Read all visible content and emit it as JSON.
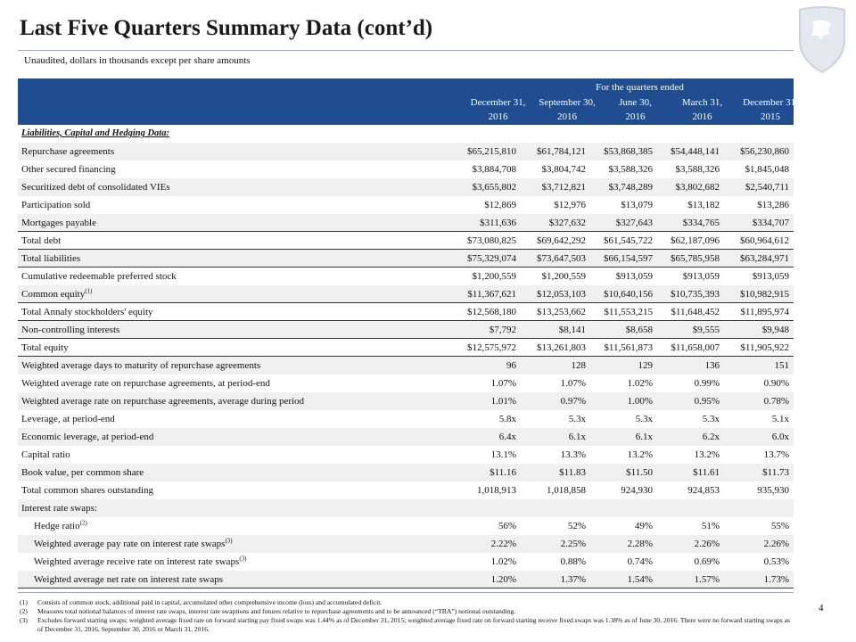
{
  "header": {
    "title": "Last Five Quarters Summary Data (cont’d)",
    "subtitle": "Unaudited, dollars in thousands except per share amounts"
  },
  "table": {
    "group_header": "For the quarters ended",
    "columns": [
      [
        "December 31,",
        "2016"
      ],
      [
        "September 30,",
        "2016"
      ],
      [
        "June 30,",
        "2016"
      ],
      [
        "March 31,",
        "2016"
      ],
      [
        "December 31,",
        "2015"
      ]
    ],
    "section": "Liabilities, Capital and Hedging Data:",
    "rows": [
      {
        "label": "Repurchase agreements",
        "values": [
          "$65,215,810",
          "$61,784,121",
          "$53,868,385",
          "$54,448,141",
          "$56,230,860"
        ]
      },
      {
        "label": "Other secured financing",
        "values": [
          "$3,884,708",
          "$3,804,742",
          "$3,588,326",
          "$3,588,326",
          "$1,845,048"
        ]
      },
      {
        "label": "Securitized debt of consolidated VIEs",
        "values": [
          "$3,655,802",
          "$3,712,821",
          "$3,748,289",
          "$3,802,682",
          "$2,540,711"
        ]
      },
      {
        "label": "Participation sold",
        "values": [
          "$12,869",
          "$12,976",
          "$13,079",
          "$13,182",
          "$13,286"
        ]
      },
      {
        "label": "Mortgages payable",
        "values": [
          "$311,636",
          "$327,632",
          "$327,643",
          "$334,765",
          "$334,707"
        ]
      },
      {
        "label": "Total debt",
        "values": [
          "$73,080,825",
          "$69,642,292",
          "$61,545,722",
          "$62,187,096",
          "$60,964,612"
        ]
      },
      {
        "label": "Total liabilities",
        "values": [
          "$75,329,074",
          "$73,647,503",
          "$66,154,597",
          "$65,785,958",
          "$63,284,971"
        ]
      },
      {
        "label": "Cumulative redeemable preferred stock",
        "values": [
          "$1,200,559",
          "$1,200,559",
          "$913,059",
          "$913,059",
          "$913,059"
        ]
      },
      {
        "label": "Common equity",
        "note": "(1)",
        "values": [
          "$11,367,621",
          "$12,053,103",
          "$10,640,156",
          "$10,735,393",
          "$10,982,915"
        ]
      },
      {
        "label": "Total Annaly stockholders' equity",
        "values": [
          "$12,568,180",
          "$13,253,662",
          "$11,553,215",
          "$11,648,452",
          "$11,895,974"
        ]
      },
      {
        "label": "Non-controlling interests",
        "values": [
          "$7,792",
          "$8,141",
          "$8,658",
          "$9,555",
          "$9,948"
        ]
      },
      {
        "label": "Total equity",
        "values": [
          "$12,575,972",
          "$13,261,803",
          "$11,561,873",
          "$11,658,007",
          "$11,905,922"
        ]
      },
      {
        "label": "Weighted average days to maturity of repurchase agreements",
        "values": [
          "96",
          "128",
          "129",
          "136",
          "151"
        ]
      },
      {
        "label": "Weighted average rate on repurchase agreements, at period-end",
        "values": [
          "1.07%",
          "1.07%",
          "1.02%",
          "0.99%",
          "0.90%"
        ]
      },
      {
        "label": "Weighted average rate on repurchase agreements, average during period",
        "values": [
          "1.01%",
          "0.97%",
          "1.00%",
          "0.95%",
          "0.78%"
        ]
      },
      {
        "label": "Leverage, at period-end",
        "values": [
          "5.8x",
          "5.3x",
          "5.3x",
          "5.3x",
          "5.1x"
        ]
      },
      {
        "label": "Economic leverage, at period-end",
        "values": [
          "6.4x",
          "6.1x",
          "6.1x",
          "6.2x",
          "6.0x"
        ]
      },
      {
        "label": "Capital ratio",
        "values": [
          "13.1%",
          "13.3%",
          "13.2%",
          "13.2%",
          "13.7%"
        ]
      },
      {
        "label": "Book value, per common share",
        "values": [
          "$11.16",
          "$11.83",
          "$11.50",
          "$11.61",
          "$11.73"
        ]
      },
      {
        "label": "Total common shares outstanding",
        "values": [
          "1,018,913",
          "1,018,858",
          "924,930",
          "924,853",
          "935,930"
        ]
      },
      {
        "label": "Interest rate swaps:"
      },
      {
        "label": "Hedge ratio",
        "note": "(2)",
        "values": [
          "56%",
          "52%",
          "49%",
          "51%",
          "55%"
        ]
      },
      {
        "label": "Weighted average pay rate on interest rate swaps",
        "note": "(3)",
        "values": [
          "2.22%",
          "2.25%",
          "2.28%",
          "2.26%",
          "2.26%"
        ]
      },
      {
        "label": "Weighted average receive rate on interest rate swaps",
        "note": "(3)",
        "values": [
          "1.02%",
          "0.88%",
          "0.74%",
          "0.69%",
          "0.53%"
        ]
      },
      {
        "label": "Weighted average net rate on interest rate swaps",
        "values": [
          "1.20%",
          "1.37%",
          "1.54%",
          "1.57%",
          "1.73%"
        ]
      }
    ]
  },
  "footnotes": [
    {
      "marker": "(1)",
      "text": "Consists of common stock, additional paid in capital, accumulated other comprehensive income (loss) and accumulated deficit."
    },
    {
      "marker": "(2)",
      "text": "Measures total notional balances of interest rate swaps, interest rate swaptions and futures relative to repurchase agreements and to be announced (“TBA”) notional outstanding."
    },
    {
      "marker": "(3)",
      "text": "Excludes forward starting swaps; weighted average fixed rate on forward starting pay fixed swaps was 1.44% as of December 31, 2015; weighted average fixed rate on forward starting receive fixed swaps was 1.38% as of June 30, 2016. There were no forward starting swaps as of December 31, 2016, September 30, 2016 or March 31, 2016."
    }
  ],
  "page_number": "4"
}
